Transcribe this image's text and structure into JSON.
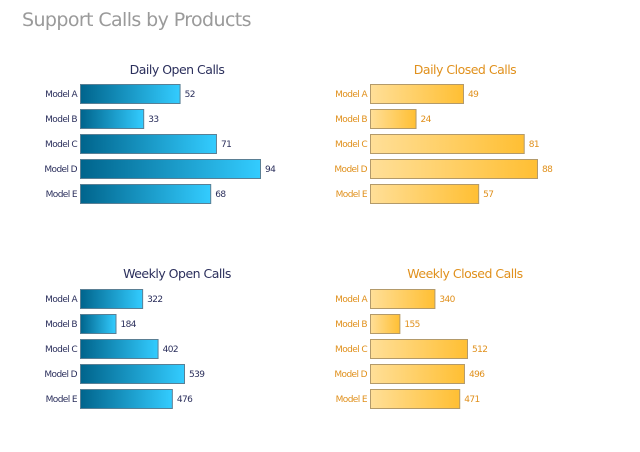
{
  "title": "Support Calls by Products",
  "colors": {
    "blue_text": "#2b2f5c",
    "blue_bar_start": "#00648c",
    "blue_bar_end": "#33ccff",
    "blue_bar_border": "#5a7f94",
    "orange_text": "#e0901c",
    "orange_bar_start": "#ffdf98",
    "orange_bar_end": "#ffbf33",
    "orange_bar_border": "#b39a6a"
  },
  "chart_data": [
    {
      "type": "bar",
      "orientation": "horizontal",
      "title": "Daily Open Calls",
      "theme": "blue",
      "categories": [
        "Model A",
        "Model B",
        "Model C",
        "Model D",
        "Model E"
      ],
      "values": [
        52,
        33,
        71,
        94,
        68
      ],
      "xlim": [
        0,
        94
      ],
      "xlabel": "",
      "ylabel": "",
      "grid": false
    },
    {
      "type": "bar",
      "orientation": "horizontal",
      "title": "Daily Closed Calls",
      "theme": "orange",
      "categories": [
        "Model A",
        "Model B",
        "Model C",
        "Model D",
        "Model E"
      ],
      "values": [
        49,
        24,
        81,
        88,
        57
      ],
      "xlim": [
        0,
        88
      ],
      "xlabel": "",
      "ylabel": "",
      "grid": false
    },
    {
      "type": "bar",
      "orientation": "horizontal",
      "title": "Weekly Open Calls",
      "theme": "blue",
      "categories": [
        "Model A",
        "Model B",
        "Model C",
        "Model D",
        "Model E"
      ],
      "values": [
        322,
        184,
        402,
        539,
        476
      ],
      "xlim": [
        0,
        539
      ],
      "xlabel": "",
      "ylabel": "",
      "grid": false
    },
    {
      "type": "bar",
      "orientation": "horizontal",
      "title": "Weekly Closed Calls",
      "theme": "orange",
      "categories": [
        "Model A",
        "Model B",
        "Model C",
        "Model D",
        "Model E"
      ],
      "values": [
        340,
        155,
        512,
        496,
        471
      ],
      "xlim": [
        0,
        512
      ],
      "xlabel": "",
      "ylabel": "",
      "grid": false
    }
  ]
}
